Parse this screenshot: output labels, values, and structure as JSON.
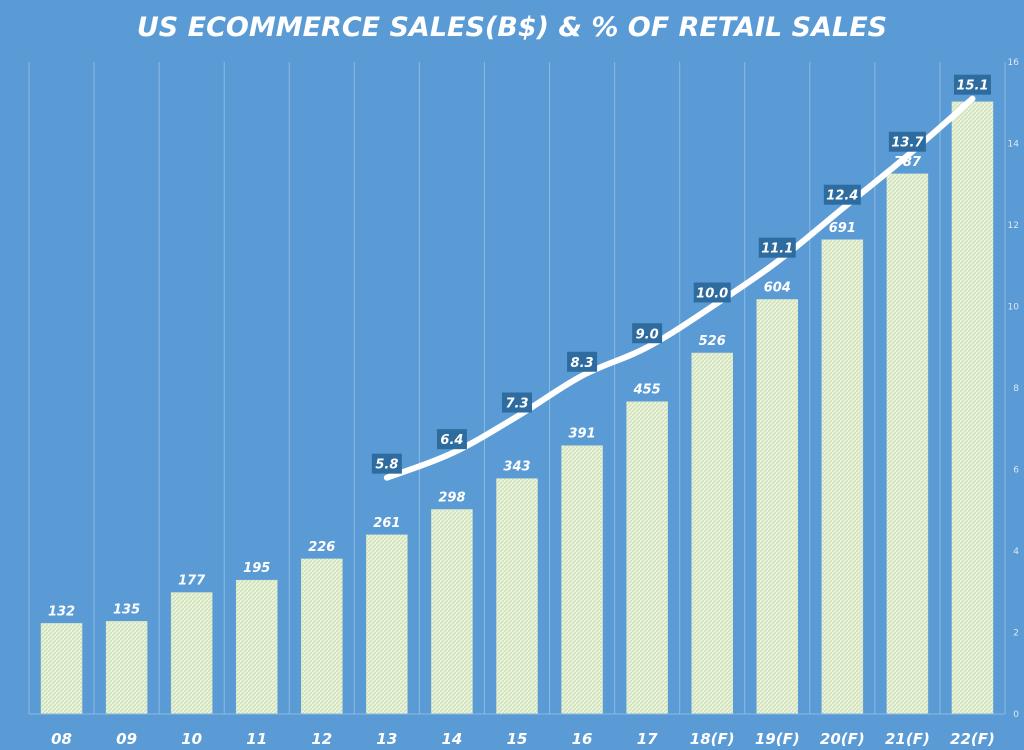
{
  "chart_data": {
    "type": "bar",
    "title": "US ECOMMERCE SALES(B$) & % OF RETAIL SALES",
    "categories": [
      "08",
      "09",
      "10",
      "11",
      "12",
      "13",
      "14",
      "15",
      "16",
      "17",
      "18(F)",
      "19(F)",
      "20(F)",
      "21(F)",
      "22(F)"
    ],
    "series": [
      {
        "type": "bar",
        "values": [
          132,
          135,
          177,
          195,
          226,
          261,
          298,
          343,
          391,
          455,
          526,
          604,
          691,
          787,
          892
        ]
      },
      {
        "type": "line",
        "axis": "secondary",
        "values": [
          null,
          null,
          null,
          null,
          null,
          5.8,
          6.4,
          7.3,
          8.3,
          9.0,
          10.0,
          11.1,
          12.4,
          13.7,
          15.1
        ],
        "labels": [
          null,
          null,
          null,
          null,
          null,
          "5.8",
          "6.4",
          "7.3",
          "8.3",
          "9.0",
          "10.0",
          "11.1",
          "12.4",
          "13.7",
          "15.1"
        ]
      }
    ],
    "ylim": [
      0,
      950
    ],
    "y2lim": [
      0,
      16
    ],
    "y2_ticks": [
      0,
      2,
      4,
      6,
      8,
      10,
      12,
      14,
      16
    ],
    "grid": "vertical",
    "colors": {
      "background": "#5b9bd5",
      "bar_fill": "#e9f3dc",
      "bar_hatch": "#c9dcb0",
      "line": "#ffffff",
      "label_box": "#2e6b9e",
      "gridline": "#8bb9e3",
      "text": "#ffffff"
    }
  }
}
